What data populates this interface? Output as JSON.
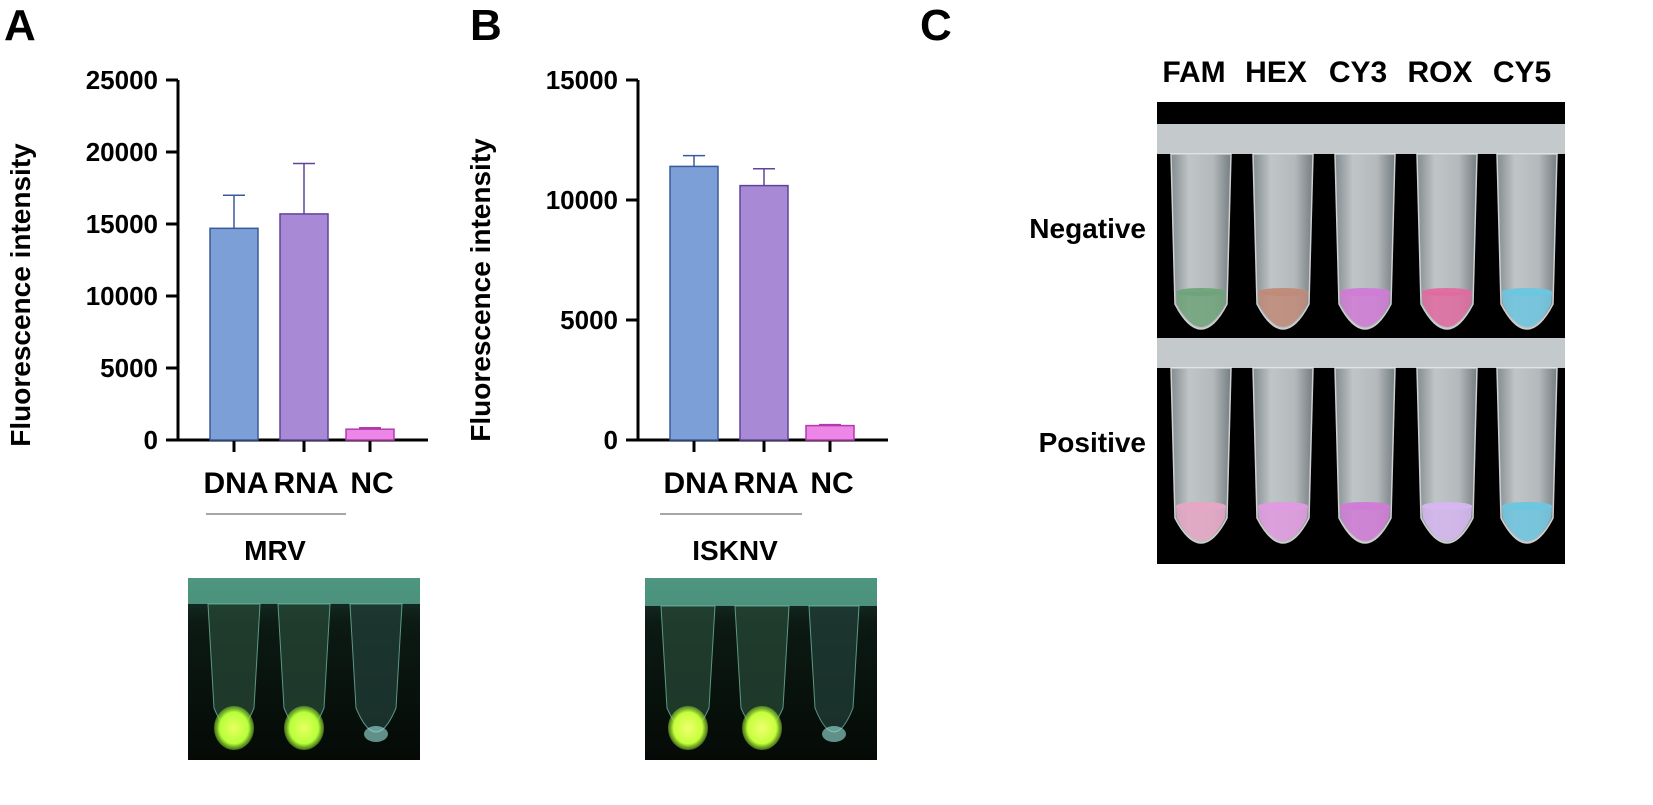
{
  "panels": {
    "a": {
      "letter": "A"
    },
    "b": {
      "letter": "B"
    },
    "c": {
      "letter": "C",
      "channels": [
        "FAM",
        "HEX",
        "CY3",
        "ROX",
        "CY5"
      ],
      "rows": [
        "Negative",
        "Positive"
      ]
    }
  },
  "chart_data": [
    {
      "type": "bar",
      "ylabel": "Fluorescence intensity",
      "categories": [
        "DNA",
        "RNA",
        "NC"
      ],
      "values": [
        14700,
        15700,
        750
      ],
      "errors": [
        2300,
        3500,
        100
      ],
      "colors": [
        "#7b9fd6",
        "#a889d6",
        "#ee86e8"
      ],
      "edge_colors": [
        "#3b5a9a",
        "#60449a",
        "#b03cab"
      ],
      "ylim": [
        0,
        25000
      ],
      "yticks": [
        "0",
        "5000",
        "10000",
        "15000",
        "20000",
        "25000"
      ],
      "group_label": "MRV",
      "grid": false
    },
    {
      "type": "bar",
      "ylabel": "Fluorescence intensity",
      "categories": [
        "DNA",
        "RNA",
        "NC"
      ],
      "values": [
        11400,
        10600,
        600
      ],
      "errors": [
        450,
        700,
        40
      ],
      "colors": [
        "#7b9fd6",
        "#a889d6",
        "#ee86e8"
      ],
      "edge_colors": [
        "#3b5a9a",
        "#60449a",
        "#b03cab"
      ],
      "ylim": [
        0,
        15000
      ],
      "yticks": [
        "0",
        "5000",
        "10000",
        "15000"
      ],
      "group_label": "ISKNV",
      "grid": false
    }
  ],
  "photos": {
    "a": {
      "tube_glow": [
        "#b7ff3a",
        "#b7ff3a",
        "#9ee8e0"
      ]
    },
    "b": {
      "tube_glow": [
        "#c4ff3a",
        "#c4ff3a",
        "#9ee8e0"
      ]
    },
    "c": {
      "negative_tints": [
        "#6fa37a",
        "#c08a78",
        "#d07ad6",
        "#e06aa0",
        "#6cc6e0"
      ],
      "positive_tints": [
        "#e6a6c6",
        "#e09ae0",
        "#d07ad6",
        "#d6b6f0",
        "#6cc6e0"
      ]
    }
  }
}
